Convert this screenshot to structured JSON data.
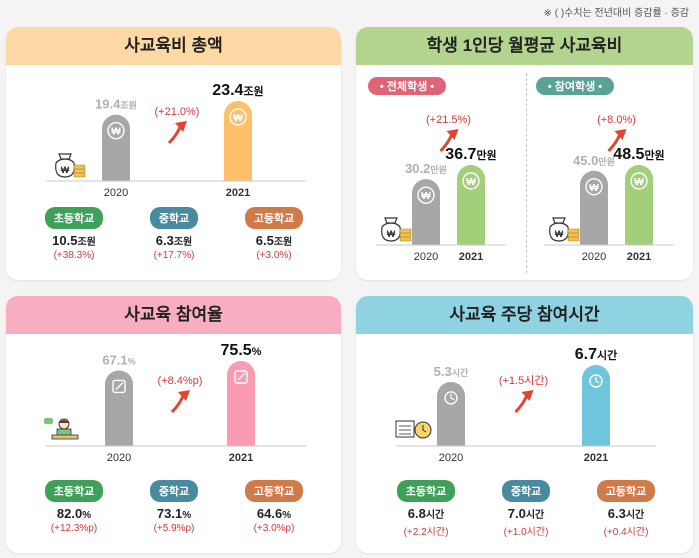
{
  "note": "※ (     )수치는 전년대비 증감률 · 증감",
  "colors": {
    "gray_bar": "#a7a7a7",
    "red_arrow": "#e0452f",
    "change_text": "#d23a3a",
    "elem_pill": "#3fa05a",
    "middle_pill": "#4a8aa0",
    "high_pill": "#d07a4a"
  },
  "panels": [
    {
      "id": "total",
      "title": "사교육비 총액",
      "title_bg": "#fcd9a4",
      "chart_data": {
        "type": "bar",
        "categories": [
          "2020",
          "2021"
        ],
        "values": [
          19.4,
          23.4
        ],
        "unit": "조원",
        "value_labels": [
          "19.4",
          "23.4"
        ],
        "change": "(+21.0%)",
        "highlight_color": "#ffc069",
        "icon": "money-bag-icon"
      },
      "subs": [
        {
          "label": "초등학교",
          "value": "10.5",
          "unit": "조원",
          "change": "(+38.3%)",
          "color": "#3fa05a"
        },
        {
          "label": "중학교",
          "value": "6.3",
          "unit": "조원",
          "change": "(+17.7%)",
          "color": "#4a8aa0"
        },
        {
          "label": "고등학교",
          "value": "6.5",
          "unit": "조원",
          "change": "(+3.0%)",
          "color": "#d07a4a"
        }
      ]
    },
    {
      "id": "per-student",
      "title": "학생 1인당 월평균 사교육비",
      "title_bg": "#b3d48e",
      "segments": [
        {
          "pill": "• 전체학생 •",
          "pill_color": "#e06478",
          "chart_data": {
            "type": "bar",
            "categories": [
              "2020",
              "2021"
            ],
            "values": [
              30.2,
              36.7
            ],
            "unit": "만원",
            "value_labels": [
              "30.2",
              "36.7"
            ],
            "change": "(+21.5%)",
            "highlight_color": "#a3cf7a",
            "icon": "money-bag-icon"
          }
        },
        {
          "pill": "• 참여학생 •",
          "pill_color": "#5aa294",
          "chart_data": {
            "type": "bar",
            "categories": [
              "2020",
              "2021"
            ],
            "values": [
              45.0,
              48.5
            ],
            "unit": "만원",
            "value_labels": [
              "45.0",
              "48.5"
            ],
            "change": "(+8.0%)",
            "highlight_color": "#a3cf7a",
            "icon": "money-bag-icon"
          }
        }
      ]
    },
    {
      "id": "participation",
      "title": "사교육 참여율",
      "title_bg": "#f8aec0",
      "chart_data": {
        "type": "bar",
        "categories": [
          "2020",
          "2021"
        ],
        "values": [
          67.1,
          75.5
        ],
        "unit": "%",
        "value_labels": [
          "67.1",
          "75.5"
        ],
        "change": "(+8.4%p)",
        "highlight_color": "#f99bb2",
        "icon": "student-desk-icon"
      },
      "subs": [
        {
          "label": "초등학교",
          "value": "82.0",
          "unit": "%",
          "change": "(+12.3%p)",
          "color": "#3fa05a"
        },
        {
          "label": "중학교",
          "value": "73.1",
          "unit": "%",
          "change": "(+5.9%p)",
          "color": "#4a8aa0"
        },
        {
          "label": "고등학교",
          "value": "64.6",
          "unit": "%",
          "change": "(+3.0%p)",
          "color": "#d07a4a"
        }
      ]
    },
    {
      "id": "weekly-hours",
      "title": "사교육 주당 참여시간",
      "title_bg": "#8fd3e3",
      "chart_data": {
        "type": "bar",
        "categories": [
          "2020",
          "2021"
        ],
        "values": [
          5.3,
          6.7
        ],
        "unit": "시간",
        "value_labels": [
          "5.3",
          "6.7"
        ],
        "change": "(+1.5시간)",
        "highlight_color": "#70c6dd",
        "icon": "books-clock-icon"
      },
      "subs": [
        {
          "label": "초등학교",
          "value": "6.8",
          "unit": "시간",
          "change": "(+2.2시간)",
          "color": "#3fa05a"
        },
        {
          "label": "중학교",
          "value": "7.0",
          "unit": "시간",
          "change": "(+1.0시간)",
          "color": "#4a8aa0"
        },
        {
          "label": "고등학교",
          "value": "6.3",
          "unit": "시간",
          "change": "(+0.4시간)",
          "color": "#d07a4a"
        }
      ]
    }
  ]
}
